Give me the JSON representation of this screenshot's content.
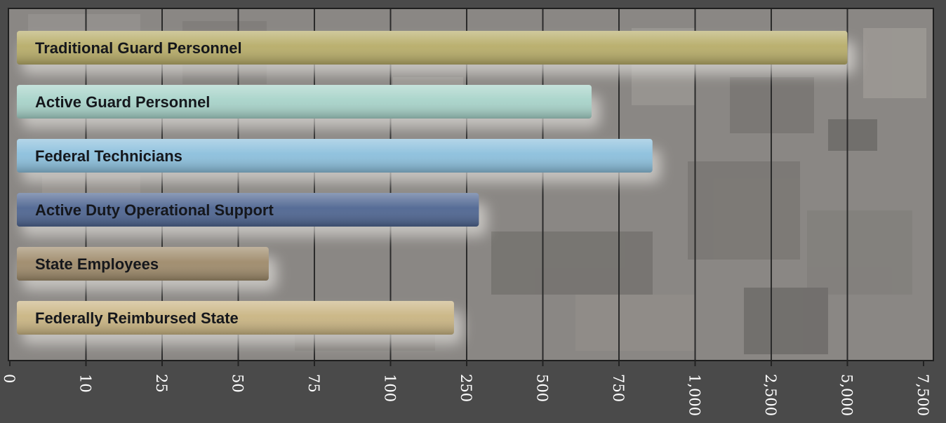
{
  "chart_data": {
    "type": "bar",
    "orientation": "horizontal",
    "title": "",
    "xlabel": "",
    "ylabel": "",
    "x_ticks": [
      "0",
      "10",
      "25",
      "50",
      "75",
      "100",
      "250",
      "500",
      "750",
      "1,000",
      "2,500",
      "5,000",
      "7,500"
    ],
    "x_tick_values": [
      0,
      10,
      25,
      50,
      75,
      100,
      250,
      500,
      750,
      1000,
      2500,
      5000,
      7500
    ],
    "grid": "vertical",
    "categories": [
      "Traditional Guard Personnel",
      "Active Guard Personnel",
      "Federal Technicians",
      "Active Duty Operational Support",
      "State Employees",
      "Federally Reimbursed State"
    ],
    "values": [
      5000,
      660,
      860,
      290,
      60,
      225
    ],
    "colors": [
      "#b7ac68",
      "#a7d3c9",
      "#8bbfdc",
      "#4e6591",
      "#9e8a6a",
      "#c9b482"
    ]
  }
}
